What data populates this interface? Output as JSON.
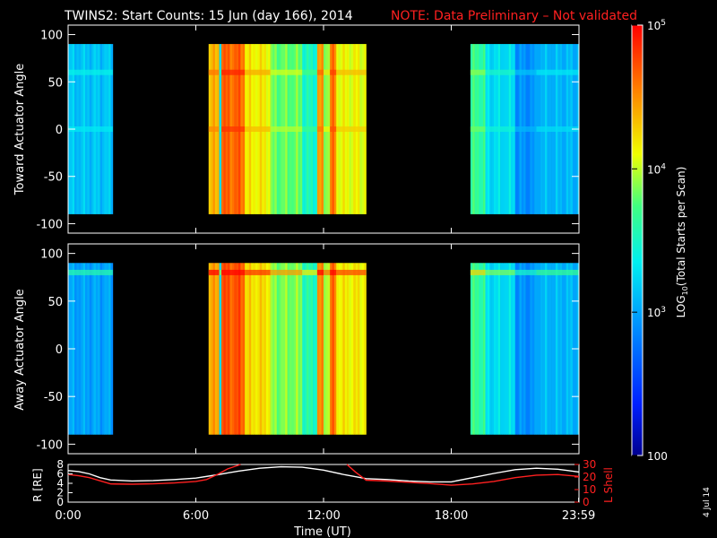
{
  "header": {
    "title": "TWINS2: Start Counts: 15 Jun (day 166), 2014",
    "note": "NOTE: Data Preliminary – Not validated",
    "note_color": "#ff2020"
  },
  "footer_date": "4 Jul 14",
  "chart_data": [
    {
      "type": "heatmap",
      "ylabel": "Toward Actuator Angle",
      "ylim": [
        -110,
        110
      ],
      "yticks": [
        100,
        50,
        0,
        -50,
        -100
      ],
      "x_hours": [
        0,
        24
      ],
      "data_extent_deg": [
        -90,
        90
      ],
      "data_segments_hours": [
        [
          0.0,
          2.1
        ],
        [
          6.6,
          14.0
        ],
        [
          18.9,
          24.0
        ]
      ],
      "column_profile": [
        {
          "start": 0.0,
          "end": 2.1,
          "level": 0.38
        },
        {
          "start": 6.6,
          "end": 7.1,
          "level": 0.78
        },
        {
          "start": 7.1,
          "end": 7.2,
          "level": 0.45
        },
        {
          "start": 7.2,
          "end": 8.3,
          "level": 0.88
        },
        {
          "start": 8.3,
          "end": 9.5,
          "level": 0.72
        },
        {
          "start": 9.5,
          "end": 11.0,
          "level": 0.6
        },
        {
          "start": 11.0,
          "end": 11.7,
          "level": 0.5
        },
        {
          "start": 11.7,
          "end": 12.0,
          "level": 0.8
        },
        {
          "start": 12.0,
          "end": 12.3,
          "level": 0.65
        },
        {
          "start": 12.3,
          "end": 12.6,
          "level": 0.85
        },
        {
          "start": 12.6,
          "end": 14.0,
          "level": 0.7
        },
        {
          "start": 18.9,
          "end": 19.6,
          "level": 0.55
        },
        {
          "start": 19.6,
          "end": 21.0,
          "level": 0.42
        },
        {
          "start": 21.0,
          "end": 22.0,
          "level": 0.3
        },
        {
          "start": 22.0,
          "end": 24.0,
          "level": 0.36
        }
      ],
      "features": [
        {
          "name": "band-60deg",
          "angle_deg": 60,
          "level_delta": 0.08
        },
        {
          "name": "band-0deg",
          "angle_deg": 0,
          "level_delta": 0.06
        }
      ]
    },
    {
      "type": "heatmap",
      "ylabel": "Away Actuator Angle",
      "ylim": [
        -110,
        110
      ],
      "yticks": [
        100,
        50,
        0,
        -50,
        -100
      ],
      "x_hours": [
        0,
        24
      ],
      "data_extent_deg": [
        -90,
        90
      ],
      "data_segments_hours": [
        [
          0.0,
          2.1
        ],
        [
          6.6,
          14.0
        ],
        [
          18.9,
          24.0
        ]
      ],
      "column_profile": [
        {
          "start": 0.0,
          "end": 2.1,
          "level": 0.33
        },
        {
          "start": 6.6,
          "end": 7.1,
          "level": 0.8
        },
        {
          "start": 7.1,
          "end": 7.2,
          "level": 0.45
        },
        {
          "start": 7.2,
          "end": 8.3,
          "level": 0.9
        },
        {
          "start": 8.3,
          "end": 9.5,
          "level": 0.74
        },
        {
          "start": 9.5,
          "end": 11.0,
          "level": 0.62
        },
        {
          "start": 11.0,
          "end": 11.7,
          "level": 0.52
        },
        {
          "start": 11.7,
          "end": 12.0,
          "level": 0.82
        },
        {
          "start": 12.0,
          "end": 12.3,
          "level": 0.67
        },
        {
          "start": 12.3,
          "end": 12.6,
          "level": 0.86
        },
        {
          "start": 12.6,
          "end": 14.0,
          "level": 0.72
        },
        {
          "start": 18.9,
          "end": 19.6,
          "level": 0.55
        },
        {
          "start": 19.6,
          "end": 21.0,
          "level": 0.42
        },
        {
          "start": 21.0,
          "end": 22.0,
          "level": 0.3
        },
        {
          "start": 22.0,
          "end": 24.0,
          "level": 0.36
        }
      ],
      "features": [
        {
          "name": "hot-band-80deg",
          "angle_deg": 80,
          "level_delta": 0.2
        }
      ]
    },
    {
      "type": "line",
      "ylabel": "R [RE]",
      "ylabel_right": "L Shell",
      "xlabel": "Time (UT)",
      "xticks": [
        {
          "hour": 0,
          "label": "0:00"
        },
        {
          "hour": 6,
          "label": "6:00"
        },
        {
          "hour": 12,
          "label": "12:00"
        },
        {
          "hour": 18,
          "label": "18:00"
        },
        {
          "hour": 23.983,
          "label": "23:59"
        }
      ],
      "ylim": [
        0,
        8
      ],
      "yticks": [
        0,
        2,
        4,
        6,
        8
      ],
      "ylim_right": [
        0,
        30
      ],
      "yticks_right": [
        0,
        10,
        20,
        30
      ],
      "series": [
        {
          "color": "#ffffff",
          "axis": "left",
          "x": [
            0,
            0.5,
            1,
            1.5,
            2,
            3,
            4,
            5,
            6,
            7,
            8,
            9,
            10,
            11,
            12,
            13,
            14,
            15,
            16,
            17,
            18,
            19,
            20,
            21,
            22,
            23,
            24
          ],
          "y": [
            6.7,
            6.5,
            6.0,
            5.2,
            4.7,
            4.5,
            4.6,
            4.8,
            5.1,
            5.8,
            6.6,
            7.2,
            7.5,
            7.4,
            6.8,
            5.8,
            5.0,
            4.8,
            4.5,
            4.3,
            4.3,
            5.2,
            6.1,
            6.9,
            7.2,
            7.0,
            6.4
          ]
        },
        {
          "color": "#ff2020",
          "axis": "right",
          "x": [
            0,
            0.5,
            1,
            1.5,
            2,
            3,
            4,
            5,
            6,
            6.5,
            7,
            7.5,
            8.1
          ],
          "y": [
            22.0,
            21.0,
            19.5,
            17.0,
            14.5,
            14.3,
            14.6,
            15.3,
            16.5,
            18.0,
            22.0,
            26.5,
            30
          ]
        },
        {
          "color": "#ff2020",
          "axis": "right",
          "x": [
            13.1,
            13.5,
            14,
            15,
            16,
            17,
            18,
            19,
            20,
            21,
            22,
            23,
            24
          ],
          "y": [
            30,
            24.0,
            17.5,
            16.8,
            15.8,
            14.8,
            13.5,
            14.5,
            16.5,
            19.5,
            21.5,
            22.0,
            20.5
          ]
        }
      ]
    }
  ],
  "colorbar": {
    "label": "LOG",
    "label_sub": "10",
    "label_rest": "(Total Starts per Scan)",
    "ticks": [
      {
        "frac": 1.0,
        "base": "10",
        "exp": "5"
      },
      {
        "frac": 0.666,
        "base": "10",
        "exp": "4"
      },
      {
        "frac": 0.333,
        "base": "10",
        "exp": "3"
      },
      {
        "frac": 0.0,
        "base": "100",
        "exp": ""
      }
    ]
  }
}
